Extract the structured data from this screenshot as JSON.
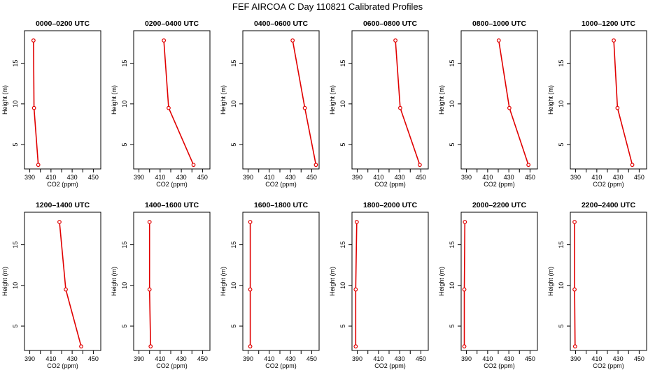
{
  "title": "FEF AIRCOA C  Day 110821  Calibrated Profiles",
  "chart_data": {
    "type": "line",
    "title": "FEF AIRCOA C  Day 110821  Calibrated Profiles",
    "xlabel": "CO2 (ppm)",
    "ylabel": "Height (m)",
    "xlim": [
      385,
      457
    ],
    "ylim": [
      2,
      19
    ],
    "xticks": [
      "390",
      "410",
      "430",
      "450"
    ],
    "xticks_minor": [
      400,
      420,
      440
    ],
    "yticks": [
      "5",
      "10",
      "15"
    ],
    "line_color": "#e00000",
    "panels": [
      {
        "name": "0000–0200 UTC",
        "points": [
          {
            "co2": 393.5,
            "height": 17.8
          },
          {
            "co2": 394.0,
            "height": 9.5
          },
          {
            "co2": 398.0,
            "height": 2.5
          }
        ]
      },
      {
        "name": "0200–0400 UTC",
        "points": [
          {
            "co2": 413.5,
            "height": 17.8
          },
          {
            "co2": 418.0,
            "height": 9.5
          },
          {
            "co2": 441.5,
            "height": 2.5
          }
        ]
      },
      {
        "name": "0400–0600 UTC",
        "points": [
          {
            "co2": 432.0,
            "height": 17.8
          },
          {
            "co2": 443.5,
            "height": 9.5
          },
          {
            "co2": 454.0,
            "height": 2.5
          }
        ]
      },
      {
        "name": "0600–0800 UTC",
        "points": [
          {
            "co2": 426.0,
            "height": 17.8
          },
          {
            "co2": 430.5,
            "height": 9.5
          },
          {
            "co2": 449.0,
            "height": 2.5
          }
        ]
      },
      {
        "name": "0800–1000 UTC",
        "points": [
          {
            "co2": 420.5,
            "height": 17.8
          },
          {
            "co2": 430.5,
            "height": 9.5
          },
          {
            "co2": 448.5,
            "height": 2.5
          }
        ]
      },
      {
        "name": "1000–1200 UTC",
        "points": [
          {
            "co2": 426.0,
            "height": 17.8
          },
          {
            "co2": 429.5,
            "height": 9.5
          },
          {
            "co2": 443.5,
            "height": 2.5
          }
        ]
      },
      {
        "name": "1200–1400 UTC",
        "points": [
          {
            "co2": 418.0,
            "height": 17.8
          },
          {
            "co2": 424.0,
            "height": 9.5
          },
          {
            "co2": 438.5,
            "height": 2.5
          }
        ]
      },
      {
        "name": "1400–1600 UTC",
        "points": [
          {
            "co2": 400.0,
            "height": 17.8
          },
          {
            "co2": 400.0,
            "height": 9.5
          },
          {
            "co2": 401.0,
            "height": 2.5
          }
        ]
      },
      {
        "name": "1600–1800 UTC",
        "points": [
          {
            "co2": 392.0,
            "height": 17.8
          },
          {
            "co2": 392.0,
            "height": 9.5
          },
          {
            "co2": 392.0,
            "height": 2.5
          }
        ]
      },
      {
        "name": "1800–2000 UTC",
        "points": [
          {
            "co2": 389.5,
            "height": 17.8
          },
          {
            "co2": 388.5,
            "height": 9.5
          },
          {
            "co2": 388.5,
            "height": 2.5
          }
        ]
      },
      {
        "name": "2000–2200 UTC",
        "points": [
          {
            "co2": 388.5,
            "height": 17.8
          },
          {
            "co2": 388.0,
            "height": 9.5
          },
          {
            "co2": 388.0,
            "height": 2.5
          }
        ]
      },
      {
        "name": "2200–2400 UTC",
        "points": [
          {
            "co2": 389.0,
            "height": 17.8
          },
          {
            "co2": 389.0,
            "height": 9.5
          },
          {
            "co2": 389.5,
            "height": 2.5
          }
        ]
      }
    ]
  }
}
